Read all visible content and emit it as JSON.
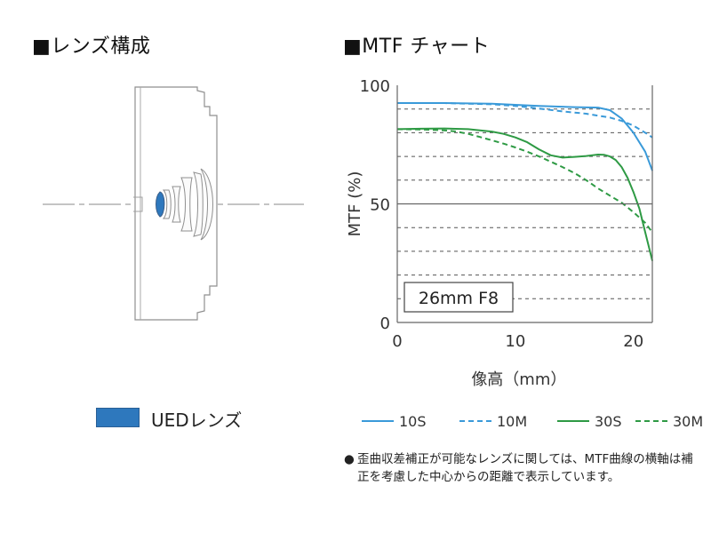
{
  "lens_section": {
    "title": "■レンズ構成",
    "legend_label": "UEDレンズ",
    "ued_color": "#2e78bd"
  },
  "mtf_section": {
    "title": "■MTF チャート"
  },
  "chart_data": {
    "type": "line",
    "xlabel": "像高（mm）",
    "ylabel": "MTF (%)",
    "xlim": [
      0,
      21.6
    ],
    "ylim": [
      0,
      100
    ],
    "x_ticks": [
      0,
      10,
      20
    ],
    "y_ticks": [
      0,
      50,
      100
    ],
    "annotation": "26mm F8",
    "grid": "horizontal dashed every 10%",
    "series": [
      {
        "name": "10S",
        "color": "#3a9ad9",
        "dash": false,
        "x": [
          0,
          4,
          8,
          12,
          15,
          17,
          18,
          19,
          20,
          21,
          21.6
        ],
        "y": [
          92.5,
          92.5,
          92.2,
          91.3,
          90.8,
          90.6,
          89.5,
          86,
          80,
          72,
          64
        ]
      },
      {
        "name": "10M",
        "color": "#3a9ad9",
        "dash": true,
        "x": [
          0,
          4,
          8,
          10,
          12,
          14,
          16,
          17,
          18,
          19,
          20,
          21,
          21.6
        ],
        "y": [
          92.5,
          92.5,
          92,
          91.3,
          90.2,
          89,
          88,
          87.2,
          86.4,
          85,
          83,
          80,
          78
        ]
      },
      {
        "name": "30S",
        "color": "#2e9a44",
        "dash": false,
        "x": [
          0,
          2,
          4,
          6,
          8,
          9,
          10,
          11,
          12,
          13,
          14,
          15,
          16,
          17,
          17.5,
          18,
          18.5,
          19,
          19.5,
          20,
          20.5,
          21,
          21.6
        ],
        "y": [
          81.5,
          81.7,
          81.8,
          81.5,
          80.5,
          79.5,
          78,
          76,
          73,
          70.5,
          69.5,
          69.8,
          70.2,
          70.8,
          70.7,
          70,
          68.5,
          65.5,
          61,
          55,
          48,
          38,
          26
        ]
      },
      {
        "name": "30M",
        "color": "#2e9a44",
        "dash": true,
        "x": [
          0,
          2,
          4,
          5,
          6,
          7,
          8,
          9,
          10,
          11,
          12,
          13,
          14,
          15,
          16,
          17,
          18,
          19,
          20,
          21,
          21.6
        ],
        "y": [
          81.5,
          81.4,
          81,
          80.5,
          79.5,
          78.2,
          76.8,
          75.4,
          73.8,
          72,
          70,
          67.8,
          65.5,
          63,
          60,
          56.5,
          53.5,
          50.5,
          46.5,
          42,
          38
        ]
      }
    ]
  },
  "footnote": {
    "bullet": "●",
    "text": "歪曲収差補正が可能なレンズに関しては、MTF曲線の横軸は補正を考慮した中心からの距離で表示しています。"
  }
}
